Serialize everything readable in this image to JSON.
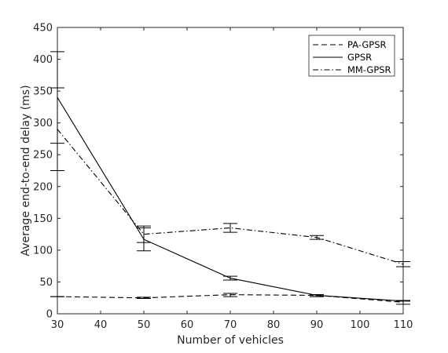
{
  "chart_data": {
    "type": "line",
    "title": "",
    "xlabel": "Number of vehicles",
    "ylabel": "Average end-to-end delay (ms)",
    "xlim": [
      30,
      110
    ],
    "ylim": [
      0,
      450
    ],
    "xticks": [
      30,
      40,
      50,
      60,
      70,
      80,
      90,
      100,
      110
    ],
    "yticks": [
      0,
      50,
      100,
      150,
      200,
      250,
      300,
      350,
      400,
      450
    ],
    "grid": false,
    "legend_position": "top-right",
    "series": [
      {
        "name": "PA-GPSR",
        "dash": "dashed",
        "x": [
          30,
          50,
          70,
          90,
          110
        ],
        "y": [
          27,
          25,
          30,
          29,
          18
        ],
        "err_low": [
          27,
          24,
          27,
          27,
          15
        ],
        "err_high": [
          27,
          26,
          32,
          30,
          21
        ]
      },
      {
        "name": "GPSR",
        "dash": "solid",
        "x": [
          30,
          50,
          70,
          90,
          110
        ],
        "y": [
          340,
          117,
          56,
          29,
          20
        ],
        "err_low": [
          268,
          99,
          53,
          27,
          20
        ],
        "err_high": [
          412,
          135,
          59,
          30,
          20
        ]
      },
      {
        "name": "MM-GPSR",
        "dash": "dashdot",
        "x": [
          30,
          50,
          70,
          90,
          110
        ],
        "y": [
          290,
          125,
          135,
          120,
          78
        ],
        "err_low": [
          225,
          112,
          128,
          117,
          74
        ],
        "err_high": [
          355,
          138,
          142,
          123,
          82
        ]
      }
    ]
  }
}
